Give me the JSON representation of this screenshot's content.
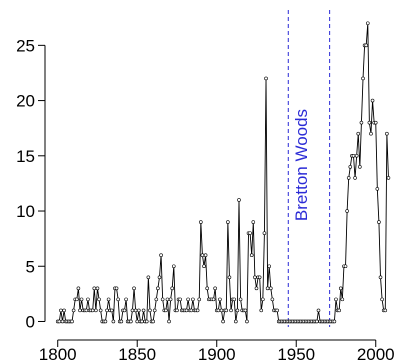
{
  "chart_data": {
    "type": "line",
    "x": [
      1800,
      1801,
      1802,
      1803,
      1804,
      1805,
      1806,
      1807,
      1808,
      1809,
      1810,
      1811,
      1812,
      1813,
      1814,
      1815,
      1816,
      1817,
      1818,
      1819,
      1820,
      1821,
      1822,
      1823,
      1824,
      1825,
      1826,
      1827,
      1828,
      1829,
      1830,
      1831,
      1832,
      1833,
      1834,
      1835,
      1836,
      1837,
      1838,
      1839,
      1840,
      1841,
      1842,
      1843,
      1844,
      1845,
      1846,
      1847,
      1848,
      1849,
      1850,
      1851,
      1852,
      1853,
      1854,
      1855,
      1856,
      1857,
      1858,
      1859,
      1860,
      1861,
      1862,
      1863,
      1864,
      1865,
      1866,
      1867,
      1868,
      1869,
      1870,
      1871,
      1872,
      1873,
      1874,
      1875,
      1876,
      1877,
      1878,
      1879,
      1880,
      1881,
      1882,
      1883,
      1884,
      1885,
      1886,
      1887,
      1888,
      1889,
      1890,
      1891,
      1892,
      1893,
      1894,
      1895,
      1896,
      1897,
      1898,
      1899,
      1900,
      1901,
      1902,
      1903,
      1904,
      1905,
      1906,
      1907,
      1908,
      1909,
      1910,
      1911,
      1912,
      1913,
      1914,
      1915,
      1916,
      1917,
      1918,
      1919,
      1920,
      1921,
      1922,
      1923,
      1924,
      1925,
      1926,
      1927,
      1928,
      1929,
      1930,
      1931,
      1932,
      1933,
      1934,
      1935,
      1936,
      1937,
      1938,
      1939,
      1940,
      1941,
      1942,
      1943,
      1944,
      1945,
      1946,
      1947,
      1948,
      1949,
      1950,
      1951,
      1952,
      1953,
      1954,
      1955,
      1956,
      1957,
      1958,
      1959,
      1960,
      1961,
      1962,
      1963,
      1964,
      1965,
      1966,
      1967,
      1968,
      1969,
      1970,
      1971,
      1972,
      1973,
      1974,
      1975,
      1976,
      1977,
      1978,
      1979,
      1980,
      1981,
      1982,
      1983,
      1984,
      1985,
      1986,
      1987,
      1988,
      1989,
      1990,
      1991,
      1992,
      1993,
      1994,
      1995,
      1996,
      1997,
      1998,
      1999,
      2000,
      2001,
      2002,
      2003,
      2004,
      2005,
      2006,
      2007,
      2008
    ],
    "values": [
      0,
      0,
      1,
      0,
      1,
      0,
      0,
      0,
      0,
      0,
      1,
      2,
      2,
      3,
      1,
      2,
      1,
      1,
      1,
      2,
      1,
      1,
      1,
      3,
      1,
      3,
      2,
      1,
      0,
      0,
      0,
      1,
      2,
      1,
      1,
      0,
      3,
      3,
      2,
      0,
      0,
      1,
      1,
      2,
      0,
      0,
      0,
      1,
      3,
      1,
      0,
      1,
      0,
      0,
      1,
      0,
      0,
      4,
      1,
      0,
      0,
      1,
      2,
      3,
      4,
      6,
      2,
      1,
      1,
      2,
      0,
      2,
      3,
      5,
      1,
      1,
      2,
      2,
      1,
      1,
      1,
      1,
      2,
      1,
      1,
      2,
      1,
      1,
      1,
      2,
      9,
      6,
      5,
      6,
      3,
      2,
      2,
      2,
      2,
      3,
      1,
      1,
      2,
      1,
      0,
      1,
      1,
      9,
      4,
      1,
      2,
      2,
      0,
      1,
      11,
      2,
      1,
      1,
      1,
      0,
      8,
      8,
      6,
      9,
      4,
      3,
      4,
      4,
      1,
      2,
      8,
      22,
      3,
      5,
      3,
      2,
      1,
      1,
      1,
      0,
      0,
      0,
      0,
      0,
      0,
      0,
      0,
      0,
      0,
      0,
      0,
      0,
      0,
      0,
      0,
      0,
      0,
      0,
      0,
      0,
      0,
      0,
      0,
      0,
      1,
      0,
      0,
      0,
      0,
      0,
      0,
      0,
      0,
      0,
      0,
      2,
      1,
      1,
      3,
      2,
      5,
      5,
      10,
      13,
      14,
      15,
      15,
      13,
      15,
      17,
      14,
      18,
      22,
      25,
      25,
      27,
      18,
      17,
      20,
      18,
      18,
      12,
      9,
      4,
      2,
      1,
      1,
      17,
      13
    ],
    "color": "#000000",
    "xlim": [
      1792,
      2014
    ],
    "ylim": [
      -0.5,
      28.2
    ],
    "xticks": [
      1800,
      1850,
      1900,
      1950,
      2000
    ],
    "yticks": [
      0,
      5,
      10,
      15,
      20,
      25
    ],
    "vlines": [
      1945,
      1971
    ],
    "vline_color": "#2b2bd6",
    "annotation": "Bretton Woods"
  }
}
